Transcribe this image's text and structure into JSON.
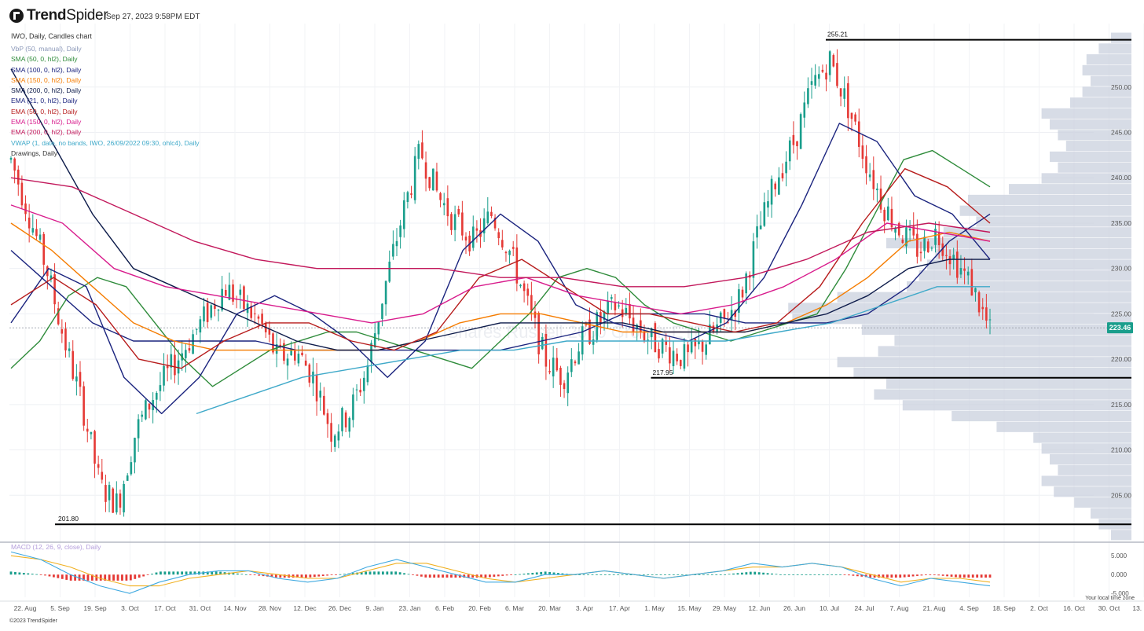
{
  "header": {
    "brand_bold": "Trend",
    "brand_thin": "Spider",
    "timestamp": "Sep 27, 2023 9:58PM EDT",
    "symbol_line": "IWO, Daily, Candles chart",
    "watermark": "iShares Russell 2000 Growth ETF"
  },
  "legend": [
    {
      "label": "VbP (50, manual), Daily",
      "color": "#8a97b8"
    },
    {
      "label": "SMA (50, 0, hl2), Daily",
      "color": "#2e8b3a"
    },
    {
      "label": "SMA (100, 0, hl2), Daily",
      "color": "#1a237e"
    },
    {
      "label": "SMA (150, 0, hl2), Daily",
      "color": "#f57c00"
    },
    {
      "label": "SMA (200, 0, hl2), Daily",
      "color": "#0d1b4a"
    },
    {
      "label": "EMA (21, 0, hl2), Daily",
      "color": "#1a237e"
    },
    {
      "label": "EMA (50, 0, hl2), Daily",
      "color": "#b71c1c"
    },
    {
      "label": "EMA (150, 0, hl2), Daily",
      "color": "#d81b8c"
    },
    {
      "label": "EMA (200, 0, hl2), Daily",
      "color": "#c2185b"
    },
    {
      "label": "VWAP (1, date, no bands, IWO, 26/09/2022 09:30, ohlc4), Daily",
      "color": "#3fa9c9"
    },
    {
      "label": "Drawings, Daily",
      "color": "#333333"
    }
  ],
  "footer": {
    "copyright": "©2023 TrendSpider",
    "timezone": "Your local time zone"
  },
  "chart_data": [
    {
      "type": "candlestick",
      "symbol": "IWO",
      "interval": "Daily",
      "title": "IWO, Daily, Candles chart",
      "ylim": [
        200,
        257
      ],
      "yticks": [
        "205.00",
        "210.00",
        "215.00",
        "220.00",
        "225.00",
        "230.00",
        "235.00",
        "240.00",
        "245.00",
        "250.00"
      ],
      "ytick_values": [
        205,
        210,
        215,
        220,
        225,
        230,
        235,
        240,
        245,
        250
      ],
      "x_labels": [
        "22. Aug",
        "5. Sep",
        "19. Sep",
        "3. Oct",
        "17. Oct",
        "31. Oct",
        "14. Nov",
        "28. Nov",
        "12. Dec",
        "26. Dec",
        "9. Jan",
        "23. Jan",
        "6. Feb",
        "20. Feb",
        "6. Mar",
        "20. Mar",
        "3. Apr",
        "17. Apr",
        "1. May",
        "15. May",
        "29. May",
        "12. Jun",
        "26. Jun",
        "10. Jul",
        "24. Jul",
        "7. Aug",
        "21. Aug",
        "4. Sep",
        "18. Sep",
        "2. Oct",
        "16. Oct",
        "30. Oct",
        "13. Nov"
      ],
      "last_price": "223.46",
      "last_price_value": 223.46,
      "levels": [
        {
          "label": "255.21",
          "value": 255.21,
          "from_label": "26. Jun"
        },
        {
          "label": "217.95",
          "value": 217.95,
          "from_label": "17. Apr"
        },
        {
          "label": "201.80",
          "value": 201.8,
          "from_label": "22. Aug"
        }
      ],
      "price_path_weekly": [
        242,
        236,
        230,
        222,
        215,
        206,
        204,
        212,
        216,
        219,
        222,
        225,
        228,
        226,
        224,
        220,
        221,
        218,
        212,
        214,
        219,
        228,
        236,
        243,
        238,
        235,
        233,
        236,
        232,
        226,
        220,
        218,
        222,
        224,
        226,
        224,
        222,
        221,
        220,
        222,
        224,
        227,
        234,
        240,
        244,
        250,
        253,
        248,
        242,
        237,
        234,
        232,
        234,
        231,
        228,
        223
      ],
      "moving_averages": [
        {
          "name": "SMA (50, 0, hl2)",
          "color": "#2e8b3a",
          "values": [
            219,
            222,
            227,
            229,
            228,
            224,
            220,
            217,
            219,
            221,
            222,
            223,
            223,
            222,
            221,
            220,
            219,
            222,
            225,
            229,
            230,
            229,
            226,
            224,
            223,
            222,
            223,
            224,
            225,
            230,
            236,
            242,
            243,
            241,
            239
          ]
        },
        {
          "name": "SMA (100, 0, hl2)",
          "color": "#1a237e",
          "values": [
            232,
            228,
            224,
            222,
            222,
            222,
            222,
            221,
            221,
            221,
            221,
            221,
            221,
            222,
            223,
            225,
            225,
            225,
            224,
            224,
            224,
            225,
            228,
            233,
            236
          ]
        },
        {
          "name": "SMA (150, 0, hl2)",
          "color": "#f57c00",
          "values": [
            235,
            232,
            228,
            224,
            222,
            221,
            221,
            221,
            221,
            221,
            222,
            224,
            225,
            225,
            224,
            223,
            223,
            223,
            223,
            224,
            226,
            229,
            233,
            234,
            233
          ]
        },
        {
          "name": "SMA (200, 0, hl2)",
          "color": "#0d1b4a",
          "values": [
            252,
            244,
            236,
            230,
            228,
            226,
            224,
            222,
            221,
            221,
            222,
            223,
            224,
            224,
            224,
            224,
            223,
            223,
            223,
            224,
            225,
            227,
            230,
            231,
            231
          ]
        },
        {
          "name": "EMA (21, 0, hl2)",
          "color": "#1a237e",
          "values": [
            224,
            230,
            228,
            218,
            214,
            218,
            225,
            227,
            225,
            222,
            218,
            222,
            232,
            236,
            233,
            226,
            224,
            223,
            222,
            224,
            229,
            237,
            246,
            244,
            238,
            236,
            231
          ]
        },
        {
          "name": "EMA (50, 0, hl2)",
          "color": "#b71c1c",
          "values": [
            226,
            229,
            226,
            220,
            219,
            222,
            224,
            224,
            222,
            221,
            223,
            229,
            231,
            228,
            225,
            225,
            224,
            223,
            224,
            228,
            235,
            241,
            239,
            235
          ]
        },
        {
          "name": "EMA (150, 0, hl2)",
          "color": "#d81b8c",
          "values": [
            237,
            235,
            230,
            228,
            227,
            226,
            225,
            224,
            225,
            228,
            229,
            227,
            226,
            225,
            226,
            228,
            231,
            235,
            234,
            233
          ]
        },
        {
          "name": "EMA (200, 0, hl2)",
          "color": "#c2185b",
          "values": [
            240,
            239,
            236,
            233,
            231,
            230,
            230,
            230,
            229,
            229,
            228,
            228,
            229,
            231,
            234,
            235,
            234
          ]
        },
        {
          "name": "VWAP (1, date, no bands, IWO, 26/09/2022 09:30, ohlc4)",
          "color": "#3fa9c9",
          "values": [
            214,
            216,
            218,
            219,
            220,
            221,
            221,
            222,
            222,
            222,
            222,
            223,
            224,
            226,
            228,
            228
          ]
        }
      ],
      "volume_profile": {
        "name": "VbP (50, manual)",
        "price_range": [
          200,
          256
        ],
        "relative_volumes": [
          0.05,
          0.08,
          0.1,
          0.14,
          0.19,
          0.22,
          0.18,
          0.2,
          0.22,
          0.24,
          0.33,
          0.44,
          0.56,
          0.63,
          0.6,
          0.68,
          0.72,
          0.62,
          0.58,
          0.66,
          0.83,
          0.84,
          0.72,
          0.55,
          0.52,
          0.5,
          0.48,
          0.6,
          0.46,
          0.38,
          0.42,
          0.4,
          0.3,
          0.22,
          0.18,
          0.2,
          0.16,
          0.18,
          0.2,
          0.22,
          0.15,
          0.12,
          0.1,
          0.12,
          0.11,
          0.08,
          0.05
        ]
      }
    },
    {
      "type": "macd",
      "title": "MACD (12, 26, 9, close), Daily",
      "ylim": [
        -6,
        6.5
      ],
      "yticks": [
        "5.000",
        "0.000",
        "-5.000"
      ],
      "ytick_values": [
        5,
        0,
        -5
      ],
      "macd_line": {
        "color": "#3fa9e0",
        "values": [
          6,
          4,
          0,
          -3,
          -5,
          -2,
          0,
          1,
          1,
          -1,
          -2,
          -1,
          2,
          4,
          2,
          0,
          -2,
          -2,
          0,
          0,
          1,
          0,
          -1,
          0,
          1,
          3,
          2,
          3,
          2,
          -1,
          -3,
          -1,
          -2,
          -3
        ]
      },
      "signal_line": {
        "color": "#f0b020",
        "values": [
          5,
          4,
          2,
          -1,
          -3,
          -3,
          -1,
          0,
          1,
          0,
          -1,
          -1,
          1,
          3,
          3,
          1,
          -1,
          -2,
          -1,
          0,
          1,
          0,
          -1,
          0,
          1,
          2,
          2,
          3,
          2,
          0,
          -2,
          -1,
          -1,
          -2
        ]
      },
      "histogram_colors": {
        "positive": "#1a9e8c",
        "negative": "#e53935"
      }
    }
  ]
}
